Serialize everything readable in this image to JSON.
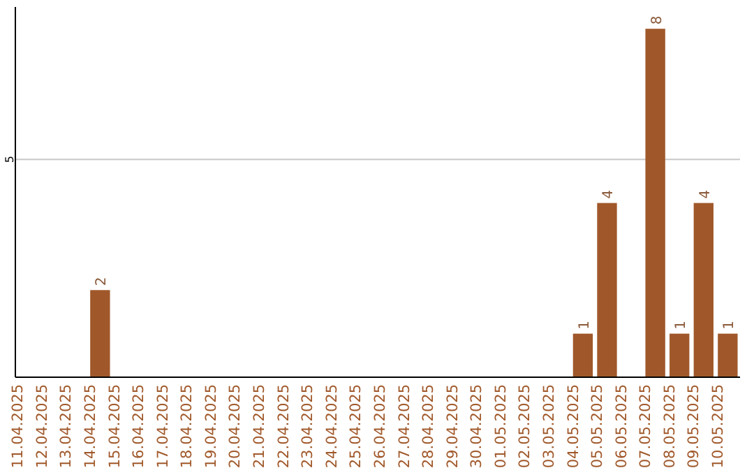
{
  "chart_data": {
    "type": "bar",
    "categories": [
      "11.04.2025",
      "12.04.2025",
      "13.04.2025",
      "14.04.2025",
      "15.04.2025",
      "16.04.2025",
      "17.04.2025",
      "18.04.2025",
      "19.04.2025",
      "20.04.2025",
      "21.04.2025",
      "22.04.2025",
      "23.04.2025",
      "24.04.2025",
      "25.04.2025",
      "26.04.2025",
      "27.04.2025",
      "28.04.2025",
      "29.04.2025",
      "30.04.2025",
      "01.05.2025",
      "02.05.2025",
      "03.05.2025",
      "04.05.2025",
      "05.05.2025",
      "06.05.2025",
      "07.05.2025",
      "08.05.2025",
      "09.05.2025",
      "10.05.2025"
    ],
    "values": [
      null,
      null,
      null,
      2,
      null,
      null,
      null,
      null,
      null,
      null,
      null,
      null,
      null,
      null,
      null,
      null,
      null,
      null,
      null,
      null,
      null,
      null,
      null,
      1,
      4,
      null,
      8,
      1,
      4,
      1
    ],
    "color": "#a0582a",
    "ylim": [
      0,
      8.5
    ],
    "yticks": [
      5
    ],
    "grid": "y",
    "data_labels": true
  }
}
